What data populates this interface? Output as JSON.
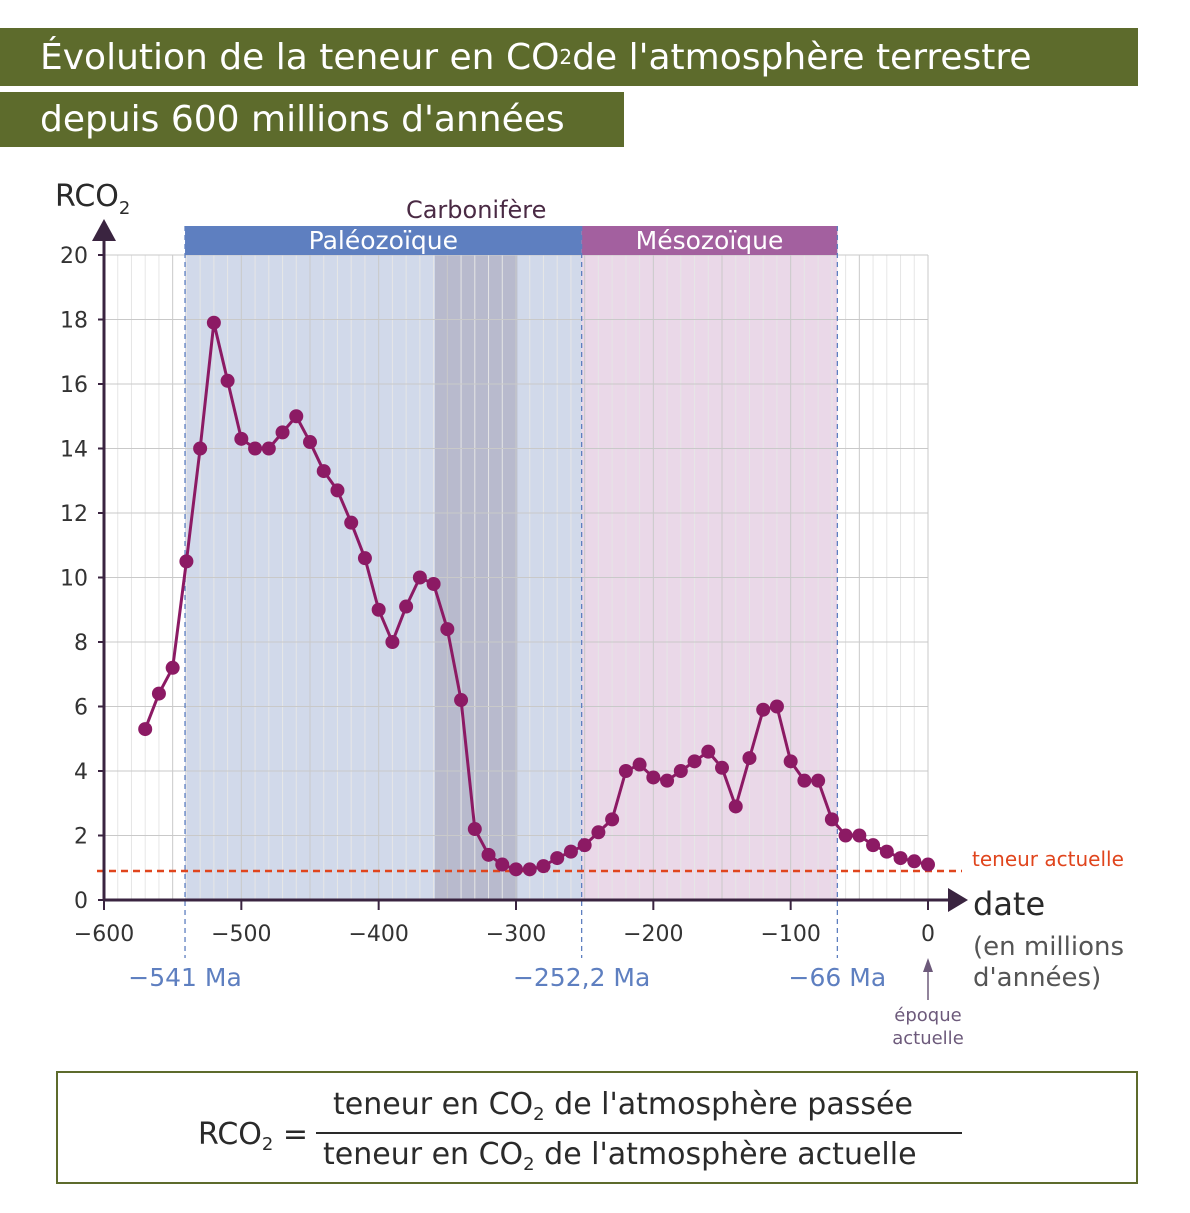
{
  "title": {
    "line1_prefix": "Évolution de la teneur en CO",
    "line1_sub": "2",
    "line1_suffix": " de l'atmosphère terrestre",
    "line2": "depuis 600 millions d'années"
  },
  "chart_data": {
    "type": "line",
    "ylabel_main": "RCO",
    "ylabel_sub": "2",
    "xlabel": "date",
    "xlabel_unit_line1": "(en millions",
    "xlabel_unit_line2": "d'années)",
    "xlim": [
      -600,
      0
    ],
    "ylim": [
      0,
      20
    ],
    "x_ticks": [
      {
        "value": -600,
        "label": "−600"
      },
      {
        "value": -500,
        "label": "−500"
      },
      {
        "value": -400,
        "label": "−400"
      },
      {
        "value": -300,
        "label": "−300"
      },
      {
        "value": -200,
        "label": "−200"
      },
      {
        "value": -100,
        "label": "−100"
      },
      {
        "value": 0,
        "label": "0"
      }
    ],
    "y_ticks": [
      {
        "value": 0,
        "label": "0"
      },
      {
        "value": 2,
        "label": "2"
      },
      {
        "value": 4,
        "label": "4"
      },
      {
        "value": 6,
        "label": "6"
      },
      {
        "value": 8,
        "label": "8"
      },
      {
        "value": 10,
        "label": "10"
      },
      {
        "value": 12,
        "label": "12"
      },
      {
        "value": 14,
        "label": "14"
      },
      {
        "value": 16,
        "label": "16"
      },
      {
        "value": 18,
        "label": "18"
      },
      {
        "value": 20,
        "label": "20"
      }
    ],
    "grid": true,
    "series_color": "#8c1a64",
    "points": [
      {
        "x": -570,
        "y": 5.3
      },
      {
        "x": -560,
        "y": 6.4
      },
      {
        "x": -550,
        "y": 7.2
      },
      {
        "x": -540,
        "y": 10.5
      },
      {
        "x": -530,
        "y": 14.0
      },
      {
        "x": -520,
        "y": 17.9
      },
      {
        "x": -510,
        "y": 16.1
      },
      {
        "x": -500,
        "y": 14.3
      },
      {
        "x": -490,
        "y": 14.0
      },
      {
        "x": -480,
        "y": 14.0
      },
      {
        "x": -470,
        "y": 14.5
      },
      {
        "x": -460,
        "y": 15.0
      },
      {
        "x": -450,
        "y": 14.2
      },
      {
        "x": -440,
        "y": 13.3
      },
      {
        "x": -430,
        "y": 12.7
      },
      {
        "x": -420,
        "y": 11.7
      },
      {
        "x": -410,
        "y": 10.6
      },
      {
        "x": -400,
        "y": 9.0
      },
      {
        "x": -390,
        "y": 8.0
      },
      {
        "x": -380,
        "y": 9.1
      },
      {
        "x": -370,
        "y": 10.0
      },
      {
        "x": -360,
        "y": 9.8
      },
      {
        "x": -350,
        "y": 8.4
      },
      {
        "x": -340,
        "y": 6.2
      },
      {
        "x": -330,
        "y": 2.2
      },
      {
        "x": -320,
        "y": 1.4
      },
      {
        "x": -310,
        "y": 1.1
      },
      {
        "x": -300,
        "y": 0.95
      },
      {
        "x": -290,
        "y": 0.95
      },
      {
        "x": -280,
        "y": 1.05
      },
      {
        "x": -270,
        "y": 1.3
      },
      {
        "x": -260,
        "y": 1.5
      },
      {
        "x": -250,
        "y": 1.7
      },
      {
        "x": -240,
        "y": 2.1
      },
      {
        "x": -230,
        "y": 2.5
      },
      {
        "x": -220,
        "y": 4.0
      },
      {
        "x": -210,
        "y": 4.2
      },
      {
        "x": -200,
        "y": 3.8
      },
      {
        "x": -190,
        "y": 3.7
      },
      {
        "x": -180,
        "y": 4.0
      },
      {
        "x": -170,
        "y": 4.3
      },
      {
        "x": -160,
        "y": 4.6
      },
      {
        "x": -150,
        "y": 4.1
      },
      {
        "x": -140,
        "y": 2.9
      },
      {
        "x": -130,
        "y": 4.4
      },
      {
        "x": -120,
        "y": 5.9
      },
      {
        "x": -110,
        "y": 6.0
      },
      {
        "x": -100,
        "y": 4.3
      },
      {
        "x": -90,
        "y": 3.7
      },
      {
        "x": -80,
        "y": 3.7
      },
      {
        "x": -70,
        "y": 2.5
      },
      {
        "x": -60,
        "y": 2.0
      },
      {
        "x": -50,
        "y": 2.0
      },
      {
        "x": -40,
        "y": 1.7
      },
      {
        "x": -30,
        "y": 1.5
      },
      {
        "x": -20,
        "y": 1.3
      },
      {
        "x": -10,
        "y": 1.2
      },
      {
        "x": 0,
        "y": 1.1
      }
    ],
    "eras": [
      {
        "name": "Paléozoïque",
        "start": -541,
        "end": -252.2,
        "color": "#5e7fc0",
        "fill": "#d1d9ea"
      },
      {
        "name": "Mésozoïque",
        "start": -252.2,
        "end": -66,
        "color": "#a3609f",
        "fill": "#ead8e8"
      }
    ],
    "carbonifere": {
      "name": "Carbonifère",
      "start": -359,
      "end": -299,
      "color": "#6d5a6b",
      "fill": "#b8bacd"
    },
    "boundaries": [
      {
        "value": -541,
        "label": "−541 Ma"
      },
      {
        "value": -252.2,
        "label": "−252,2 Ma"
      },
      {
        "value": -66,
        "label": "−66 Ma"
      }
    ],
    "reference_line": {
      "y": 0.9,
      "label": "teneur actuelle",
      "color": "#e0451d"
    },
    "present_marker": {
      "x": 0,
      "label_line1": "époque",
      "label_line2": "actuelle"
    }
  },
  "formula": {
    "lhs_main": "RCO",
    "lhs_sub": "2",
    "equals": " =",
    "numerator_prefix": "teneur en CO",
    "numerator_sub": "2",
    "numerator_suffix": " de l'atmosphère passée",
    "denominator_prefix": "teneur en CO",
    "denominator_sub": "2",
    "denominator_suffix": " de l'atmosphère actuelle"
  }
}
